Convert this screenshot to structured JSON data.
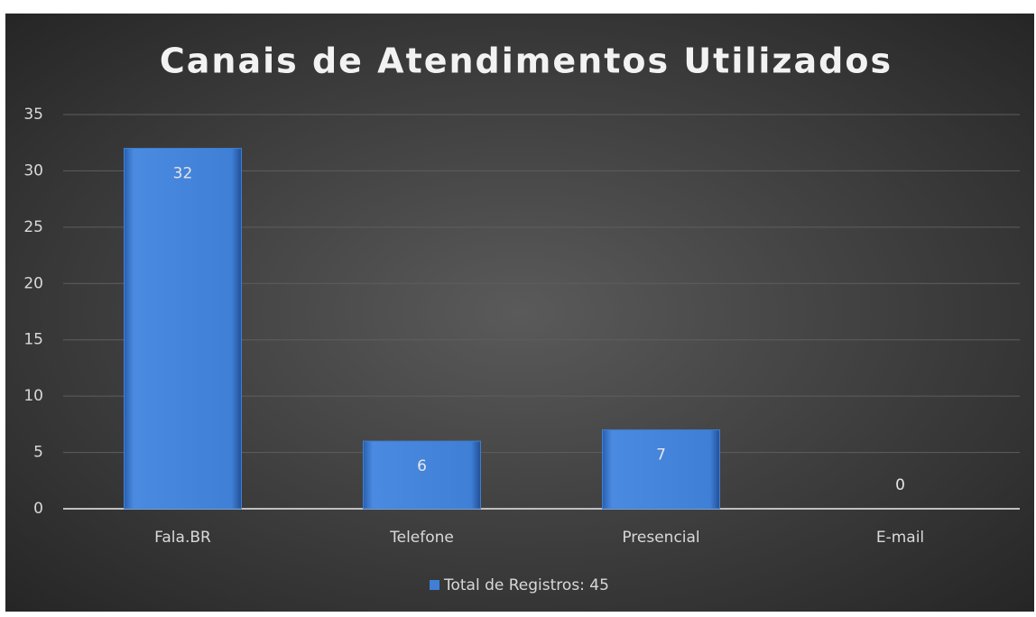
{
  "chart_data": {
    "type": "bar",
    "title": "Canais de Atendimentos Utilizados",
    "categories": [
      "Fala.BR",
      "Telefone",
      "Presencial",
      "E-mail"
    ],
    "series": [
      {
        "name": "Total de Registros: 45",
        "color": "#3f7fd6",
        "values": [
          32,
          6,
          7,
          0
        ]
      }
    ],
    "ylim": [
      0,
      35
    ],
    "yticks": [
      0,
      5,
      10,
      15,
      20,
      25,
      30,
      35
    ],
    "grid": true,
    "legend": "bottom"
  }
}
